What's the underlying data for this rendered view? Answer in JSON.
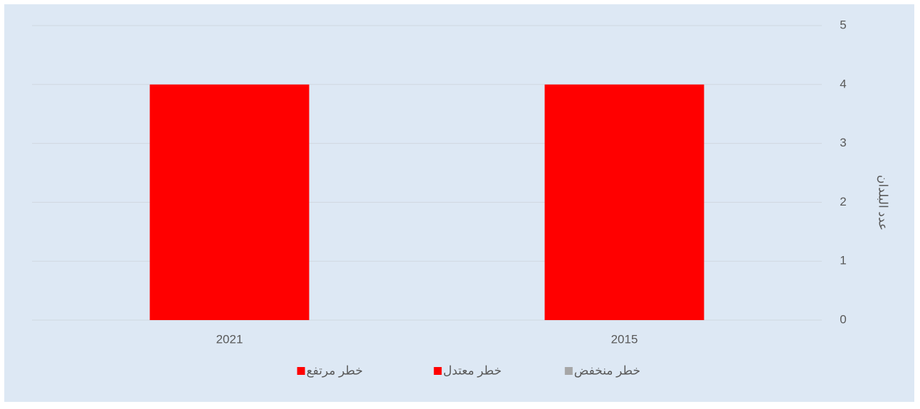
{
  "chart_data": {
    "type": "stacked_bar",
    "y_axis_label": "عدد البلدان",
    "categories": [
      "2015",
      "2021"
    ],
    "series": [
      {
        "name": "خطر منخفض",
        "color": "#a6a6a6",
        "values": [
          0,
          0
        ]
      },
      {
        "name": "خطر معتدل",
        "color": "#ff0000",
        "values": [
          0,
          0
        ]
      },
      {
        "name": "خطر مرتفع",
        "color": "#ff0000",
        "values": [
          4,
          4
        ]
      }
    ],
    "ylim": [
      0,
      5
    ],
    "yticks": [
      0,
      1,
      2,
      3,
      4,
      5
    ],
    "grid": true,
    "legend": "bottom",
    "y_axis_side": "right",
    "x_reversed": true
  }
}
